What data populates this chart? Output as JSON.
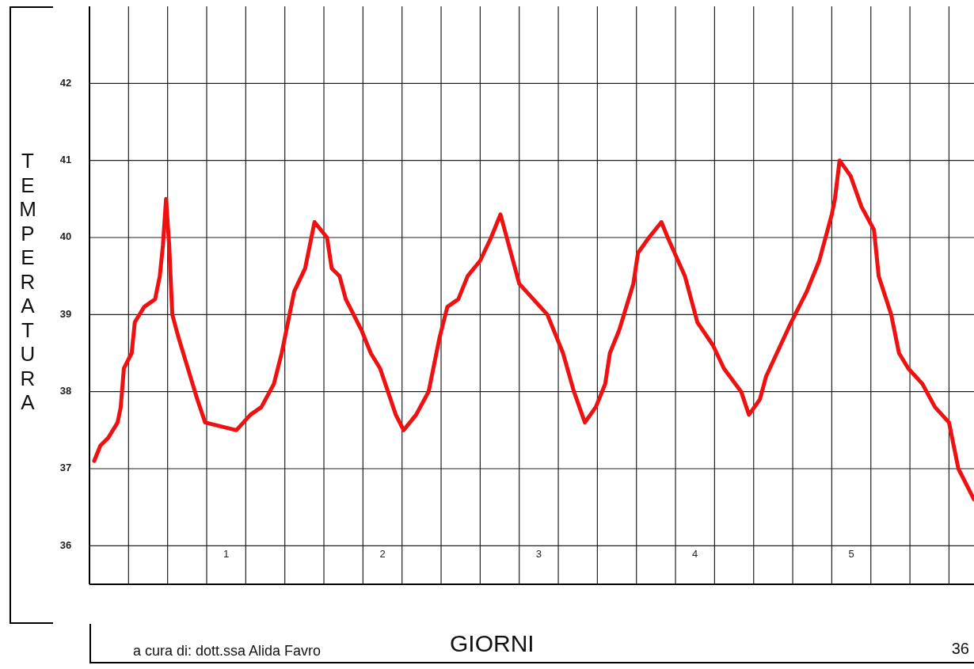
{
  "chart_data": {
    "type": "line",
    "ylabel": "TEMPERATURA",
    "xlabel": "GIORNI",
    "annotations": [
      "a cura di: dott.ssa Alida Favro",
      "36"
    ],
    "xlim": [
      0,
      5.66
    ],
    "ylim": [
      35.5,
      43
    ],
    "xticks": [
      {
        "value": 0,
        "label": null
      },
      {
        "value": 0.25,
        "label": null
      },
      {
        "value": 0.5,
        "label": null
      },
      {
        "value": 0.75,
        "label": null
      },
      {
        "value": 0.875,
        "label": "1"
      },
      {
        "value": 1,
        "label": null
      },
      {
        "value": 1.25,
        "label": null
      },
      {
        "value": 1.5,
        "label": null
      },
      {
        "value": 1.75,
        "label": null
      },
      {
        "value": 1.875,
        "label": "2"
      },
      {
        "value": 2,
        "label": null
      },
      {
        "value": 2.25,
        "label": null
      },
      {
        "value": 2.5,
        "label": null
      },
      {
        "value": 2.75,
        "label": null
      },
      {
        "value": 2.875,
        "label": "3"
      },
      {
        "value": 3,
        "label": null
      },
      {
        "value": 3.25,
        "label": null
      },
      {
        "value": 3.5,
        "label": null
      },
      {
        "value": 3.75,
        "label": null
      },
      {
        "value": 3.875,
        "label": "4"
      },
      {
        "value": 4,
        "label": null
      },
      {
        "value": 4.25,
        "label": null
      },
      {
        "value": 4.5,
        "label": null
      },
      {
        "value": 4.75,
        "label": null
      },
      {
        "value": 4.875,
        "label": "5"
      },
      {
        "value": 5,
        "label": null
      },
      {
        "value": 5.25,
        "label": null
      },
      {
        "value": 5.5,
        "label": null
      }
    ],
    "yticks": [
      36,
      37,
      38,
      39,
      40,
      41,
      42
    ],
    "grid": true,
    "marker": "none",
    "line_style": "solid",
    "series": [
      {
        "color": "#ee1111",
        "x": [
          0.03,
          0.07,
          0.12,
          0.18,
          0.2,
          0.22,
          0.27,
          0.29,
          0.35,
          0.42,
          0.45,
          0.47,
          0.49,
          0.51,
          0.53,
          0.57,
          0.63,
          0.69,
          0.74,
          0.94,
          1.03,
          1.1,
          1.18,
          1.23,
          1.31,
          1.38,
          1.44,
          1.52,
          1.55,
          1.6,
          1.64,
          1.74,
          1.8,
          1.86,
          1.91,
          1.96,
          2.01,
          2.09,
          2.17,
          2.24,
          2.29,
          2.36,
          2.42,
          2.5,
          2.57,
          2.63,
          2.71,
          2.75,
          2.93,
          3.03,
          3.1,
          3.17,
          3.24,
          3.3,
          3.33,
          3.39,
          3.48,
          3.51,
          3.58,
          3.66,
          3.7,
          3.81,
          3.89,
          3.99,
          4.06,
          4.17,
          4.22,
          4.29,
          4.33,
          4.49,
          4.59,
          4.67,
          4.75,
          4.77,
          4.8,
          4.87,
          4.94,
          5.02,
          5.05,
          5.13,
          5.18,
          5.24,
          5.33,
          5.41,
          5.5,
          5.56,
          5.61,
          5.66
        ],
        "values": [
          37.1,
          37.3,
          37.4,
          37.6,
          37.8,
          38.3,
          38.5,
          38.9,
          39.1,
          39.2,
          39.5,
          39.9,
          40.5,
          39.9,
          39.0,
          38.7,
          38.3,
          37.9,
          37.6,
          37.5,
          37.7,
          37.8,
          38.1,
          38.5,
          39.3,
          39.6,
          40.2,
          40.0,
          39.6,
          39.5,
          39.2,
          38.8,
          38.5,
          38.3,
          38.0,
          37.7,
          37.5,
          37.7,
          38.0,
          38.7,
          39.1,
          39.2,
          39.5,
          39.7,
          40.0,
          40.3,
          39.7,
          39.4,
          39.0,
          38.5,
          38.0,
          37.6,
          37.8,
          38.1,
          38.5,
          38.8,
          39.4,
          39.8,
          40.0,
          40.2,
          40.0,
          39.5,
          38.9,
          38.6,
          38.3,
          38.0,
          37.7,
          37.9,
          38.2,
          38.9,
          39.3,
          39.7,
          40.3,
          40.5,
          41.0,
          40.8,
          40.4,
          40.1,
          39.5,
          39.0,
          38.5,
          38.3,
          38.1,
          37.8,
          37.6,
          37.0,
          36.8,
          36.6
        ]
      }
    ]
  }
}
